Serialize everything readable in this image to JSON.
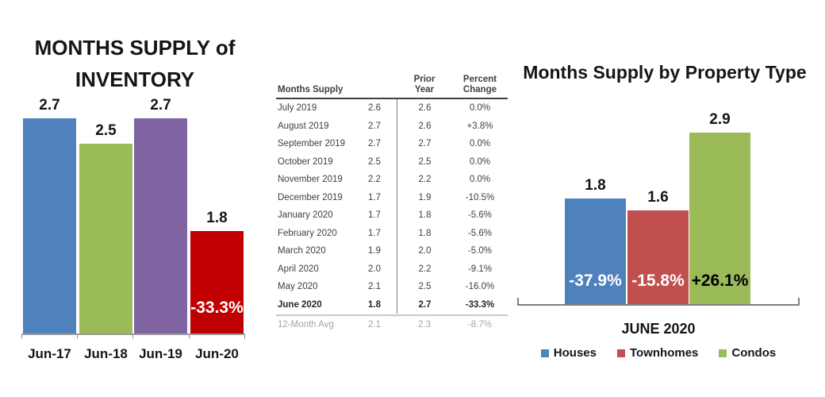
{
  "chart_data": [
    {
      "type": "bar",
      "title": "MONTHS SUPPLY of INVENTORY",
      "categories": [
        "Jun-17",
        "Jun-18",
        "Jun-19",
        "Jun-20"
      ],
      "values": [
        2.7,
        2.5,
        2.7,
        1.8
      ],
      "value_labels": [
        "2.7",
        "2.5",
        "2.7",
        "1.8"
      ],
      "bar_colors": [
        "#4F81BD",
        "#9BBB59",
        "#8064A2",
        "#C00000"
      ],
      "inside_labels": [
        "",
        "",
        "",
        "-33.3%"
      ],
      "inside_label_colors": [
        "",
        "",
        "",
        "#FFFFFF"
      ],
      "xlabel": "",
      "ylabel": "",
      "ylim": [
        1.0,
        2.75
      ],
      "grid": false,
      "legend_position": "none"
    },
    {
      "type": "bar",
      "title": "Months Supply by Property Type",
      "categories": [
        "Houses",
        "Townhomes",
        "Condos"
      ],
      "values": [
        1.8,
        1.6,
        2.9
      ],
      "value_labels": [
        "1.8",
        "1.6",
        "2.9"
      ],
      "bar_colors": [
        "#4F81BD",
        "#C0504D",
        "#9BBB59"
      ],
      "inside_labels": [
        "-37.9%",
        "-15.8%",
        "+26.1%"
      ],
      "inside_label_colors": [
        "#FFFFFF",
        "#FFFFFF",
        "#000000"
      ],
      "xlabel": "JUNE 2020",
      "ylabel": "",
      "ylim": [
        0,
        3.0
      ],
      "grid": false,
      "legend": [
        "Houses",
        "Townhomes",
        "Condos"
      ],
      "legend_position": "bottom"
    }
  ],
  "table": {
    "header": {
      "months_supply": "Months Supply",
      "prior_year": "Prior\nYear",
      "percent_change": "Percent\nChange"
    },
    "rows": [
      {
        "month": "July 2019",
        "value": "2.6",
        "prior_year": "2.6",
        "percent_change": "0.0%",
        "bold": false
      },
      {
        "month": "August 2019",
        "value": "2.7",
        "prior_year": "2.6",
        "percent_change": "+3.8%",
        "bold": false
      },
      {
        "month": "September 2019",
        "value": "2.7",
        "prior_year": "2.7",
        "percent_change": "0.0%",
        "bold": false
      },
      {
        "month": "October 2019",
        "value": "2.5",
        "prior_year": "2.5",
        "percent_change": "0.0%",
        "bold": false
      },
      {
        "month": "November 2019",
        "value": "2.2",
        "prior_year": "2.2",
        "percent_change": "0.0%",
        "bold": false
      },
      {
        "month": "December 2019",
        "value": "1.7",
        "prior_year": "1.9",
        "percent_change": "-10.5%",
        "bold": false
      },
      {
        "month": "January 2020",
        "value": "1.7",
        "prior_year": "1.8",
        "percent_change": "-5.6%",
        "bold": false
      },
      {
        "month": "February 2020",
        "value": "1.7",
        "prior_year": "1.8",
        "percent_change": "-5.6%",
        "bold": false
      },
      {
        "month": "March 2020",
        "value": "1.9",
        "prior_year": "2.0",
        "percent_change": "-5.0%",
        "bold": false
      },
      {
        "month": "April 2020",
        "value": "2.0",
        "prior_year": "2.2",
        "percent_change": "-9.1%",
        "bold": false
      },
      {
        "month": "May 2020",
        "value": "2.1",
        "prior_year": "2.5",
        "percent_change": "-16.0%",
        "bold": false
      },
      {
        "month": "June 2020",
        "value": "1.8",
        "prior_year": "2.7",
        "percent_change": "-33.3%",
        "bold": true
      }
    ],
    "avg_row": {
      "month": "12-Month Avg",
      "value": "2.1",
      "prior_year": "2.3",
      "percent_change": "-8.7%"
    }
  },
  "colors": {
    "houses_blue": "#4F81BD",
    "townhomes_red": "#C0504D",
    "condos_green": "#9BBB59",
    "purple": "#8064A2",
    "alert_red": "#C00000",
    "left_axis_gray": "#9A9A9A",
    "right_axis_gray": "#7F7F7F"
  }
}
